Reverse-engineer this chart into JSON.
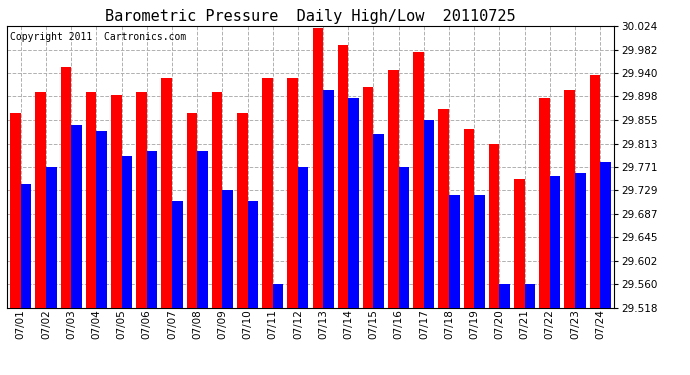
{
  "title": "Barometric Pressure  Daily High/Low  20110725",
  "copyright": "Copyright 2011  Cartronics.com",
  "dates": [
    "07/01",
    "07/02",
    "07/03",
    "07/04",
    "07/05",
    "07/06",
    "07/07",
    "07/08",
    "07/09",
    "07/10",
    "07/11",
    "07/12",
    "07/13",
    "07/14",
    "07/15",
    "07/16",
    "07/17",
    "07/18",
    "07/19",
    "07/20",
    "07/21",
    "07/22",
    "07/23",
    "07/24"
  ],
  "highs": [
    29.868,
    29.905,
    29.95,
    29.905,
    29.9,
    29.905,
    29.93,
    29.868,
    29.905,
    29.868,
    29.93,
    29.93,
    30.02,
    29.99,
    29.915,
    29.945,
    29.978,
    29.875,
    29.84,
    29.813,
    29.75,
    29.895,
    29.91,
    29.937
  ],
  "lows": [
    29.74,
    29.77,
    29.846,
    29.836,
    29.79,
    29.8,
    29.71,
    29.8,
    29.73,
    29.71,
    29.56,
    29.77,
    29.91,
    29.895,
    29.83,
    29.77,
    29.855,
    29.72,
    29.72,
    29.56,
    29.56,
    29.755,
    29.76,
    29.78
  ],
  "high_color": "#ff0000",
  "low_color": "#0000ff",
  "background_color": "#ffffff",
  "grid_color": "#b0b0b0",
  "title_fontsize": 11,
  "copyright_fontsize": 7,
  "tick_fontsize": 7.5,
  "ymin": 29.518,
  "ymax": 30.024,
  "yticks": [
    29.518,
    29.56,
    29.602,
    29.645,
    29.687,
    29.729,
    29.771,
    29.813,
    29.855,
    29.898,
    29.94,
    29.982,
    30.024
  ],
  "bar_width": 0.42,
  "xlim_left": -0.55,
  "xlim_right": 23.55
}
